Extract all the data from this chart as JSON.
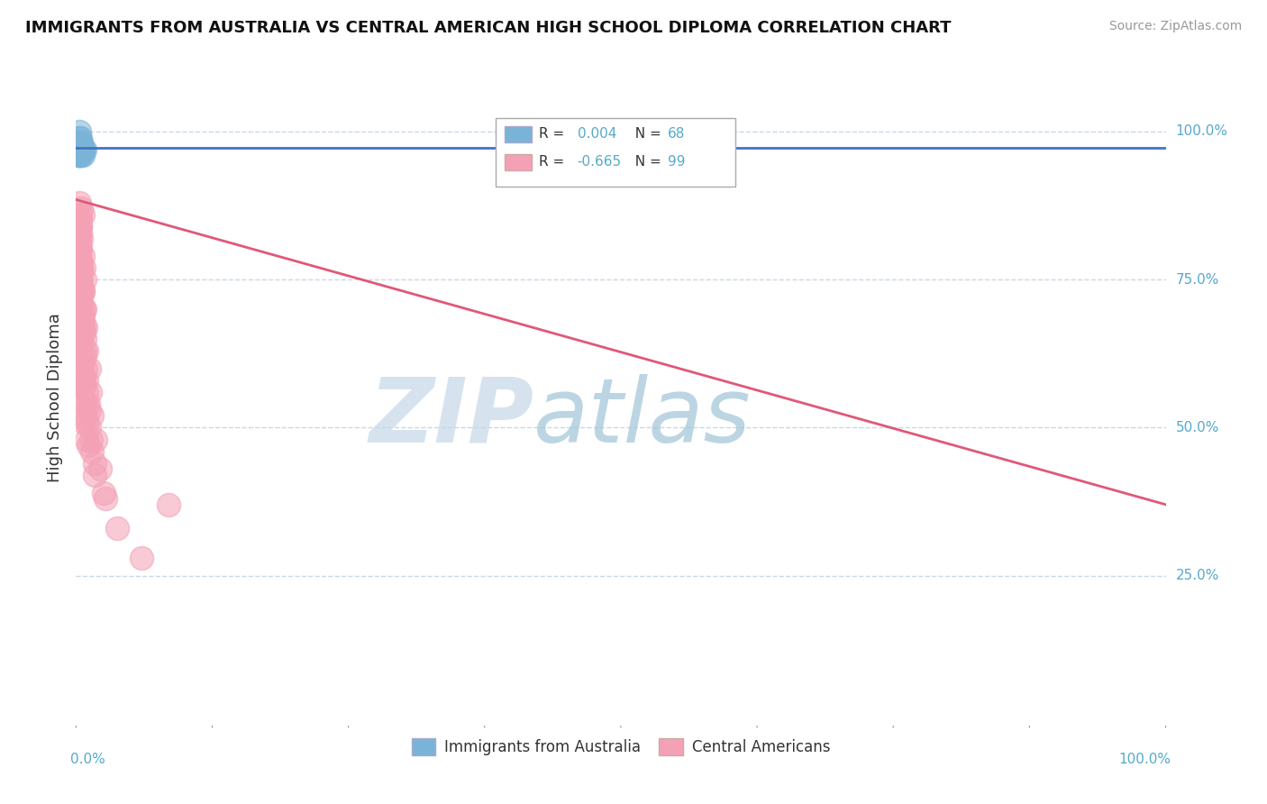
{
  "title": "IMMIGRANTS FROM AUSTRALIA VS CENTRAL AMERICAN HIGH SCHOOL DIPLOMA CORRELATION CHART",
  "source": "Source: ZipAtlas.com",
  "ylabel": "High School Diploma",
  "legend_label_blue": "Immigrants from Australia",
  "legend_label_pink": "Central Americans",
  "R_blue": 0.004,
  "N_blue": 68,
  "R_pink": -0.665,
  "N_pink": 99,
  "blue_color": "#7ab3d8",
  "blue_line_color": "#4472c4",
  "pink_color": "#f4a0b5",
  "pink_line_color": "#e05878",
  "grid_color": "#c8d8e8",
  "watermark_zip_color": "#c0d5e5",
  "watermark_atlas_color": "#a8cce0",
  "background_color": "#ffffff",
  "axis_label_color": "#55aacc",
  "text_color": "#333333",
  "source_color": "#999999",
  "xlim": [
    0.0,
    1.0
  ],
  "ylim": [
    0.0,
    1.1
  ],
  "blue_x": [
    0.003,
    0.004,
    0.005,
    0.003,
    0.004,
    0.005,
    0.006,
    0.003,
    0.004,
    0.005,
    0.003,
    0.004,
    0.005,
    0.003,
    0.004,
    0.005,
    0.004,
    0.003,
    0.005,
    0.004,
    0.006,
    0.004,
    0.005,
    0.004,
    0.005,
    0.003,
    0.004,
    0.005,
    0.003,
    0.004,
    0.003,
    0.004,
    0.005,
    0.004,
    0.003,
    0.005,
    0.003,
    0.004,
    0.005,
    0.004,
    0.003,
    0.004,
    0.003,
    0.005,
    0.004,
    0.006,
    0.003,
    0.004,
    0.003,
    0.004,
    0.005,
    0.004,
    0.003,
    0.005,
    0.003,
    0.004,
    0.005,
    0.004,
    0.003,
    0.004,
    0.008,
    0.006,
    0.005,
    0.003,
    0.003,
    0.005,
    0.004,
    0.006
  ],
  "blue_y": [
    1.0,
    0.99,
    0.98,
    0.98,
    0.97,
    0.97,
    0.97,
    0.99,
    0.98,
    0.97,
    0.96,
    0.97,
    0.98,
    0.97,
    0.98,
    0.97,
    0.97,
    0.96,
    0.97,
    0.97,
    0.97,
    0.98,
    0.97,
    0.97,
    0.97,
    0.97,
    0.98,
    0.96,
    0.98,
    0.98,
    0.97,
    0.97,
    0.97,
    0.97,
    0.97,
    0.97,
    0.98,
    0.97,
    0.97,
    0.97,
    0.97,
    0.97,
    0.97,
    0.97,
    0.98,
    0.97,
    0.97,
    0.97,
    0.98,
    0.97,
    0.97,
    0.97,
    0.96,
    0.97,
    0.97,
    0.97,
    0.97,
    0.97,
    0.97,
    0.97,
    0.97,
    0.97,
    0.97,
    0.96,
    0.97,
    0.97,
    0.97,
    0.96
  ],
  "pink_x": [
    0.003,
    0.004,
    0.003,
    0.005,
    0.004,
    0.003,
    0.006,
    0.004,
    0.003,
    0.004,
    0.005,
    0.004,
    0.003,
    0.004,
    0.003,
    0.004,
    0.006,
    0.004,
    0.003,
    0.005,
    0.003,
    0.004,
    0.004,
    0.005,
    0.003,
    0.004,
    0.005,
    0.003,
    0.004,
    0.004,
    0.007,
    0.005,
    0.004,
    0.006,
    0.003,
    0.005,
    0.008,
    0.006,
    0.004,
    0.007,
    0.005,
    0.003,
    0.008,
    0.005,
    0.003,
    0.006,
    0.004,
    0.007,
    0.005,
    0.003,
    0.009,
    0.006,
    0.004,
    0.008,
    0.005,
    0.003,
    0.01,
    0.007,
    0.004,
    0.008,
    0.005,
    0.004,
    0.012,
    0.008,
    0.005,
    0.01,
    0.006,
    0.004,
    0.013,
    0.009,
    0.005,
    0.011,
    0.007,
    0.004,
    0.015,
    0.01,
    0.006,
    0.012,
    0.008,
    0.005,
    0.018,
    0.012,
    0.007,
    0.015,
    0.01,
    0.006,
    0.022,
    0.014,
    0.008,
    0.017,
    0.011,
    0.006,
    0.027,
    0.017,
    0.01,
    0.038,
    0.025,
    0.06,
    0.085
  ],
  "pink_y": [
    0.88,
    0.86,
    0.84,
    0.87,
    0.85,
    0.83,
    0.86,
    0.84,
    0.82,
    0.84,
    0.82,
    0.8,
    0.79,
    0.81,
    0.8,
    0.83,
    0.79,
    0.78,
    0.8,
    0.77,
    0.79,
    0.76,
    0.78,
    0.75,
    0.78,
    0.74,
    0.77,
    0.76,
    0.78,
    0.73,
    0.77,
    0.74,
    0.76,
    0.73,
    0.75,
    0.71,
    0.75,
    0.73,
    0.74,
    0.7,
    0.73,
    0.75,
    0.7,
    0.72,
    0.74,
    0.68,
    0.71,
    0.67,
    0.7,
    0.72,
    0.67,
    0.69,
    0.71,
    0.65,
    0.68,
    0.7,
    0.63,
    0.66,
    0.69,
    0.62,
    0.65,
    0.67,
    0.6,
    0.63,
    0.66,
    0.58,
    0.61,
    0.64,
    0.56,
    0.6,
    0.63,
    0.54,
    0.58,
    0.61,
    0.52,
    0.56,
    0.59,
    0.5,
    0.54,
    0.57,
    0.48,
    0.53,
    0.57,
    0.46,
    0.51,
    0.55,
    0.43,
    0.48,
    0.52,
    0.42,
    0.47,
    0.51,
    0.38,
    0.44,
    0.48,
    0.33,
    0.39,
    0.28,
    0.37
  ],
  "pink_line_x0": 0.0,
  "pink_line_y0": 0.885,
  "pink_line_x1": 1.0,
  "pink_line_y1": 0.37,
  "blue_line_y": 0.972
}
